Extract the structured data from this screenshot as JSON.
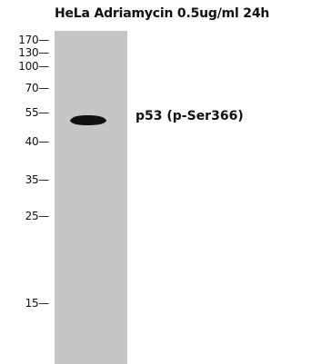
{
  "title": "HeLa Adriamycin 0.5ug/ml 24h",
  "markers": [
    "170—",
    "130—",
    "100—",
    "70—",
    "55—",
    "40—",
    "35—",
    "25—",
    "15—"
  ],
  "band_label": "p53 (p-Ser366)",
  "colors": {
    "lane": "#c6c6c6",
    "band": "#111111",
    "text": "#111111"
  }
}
